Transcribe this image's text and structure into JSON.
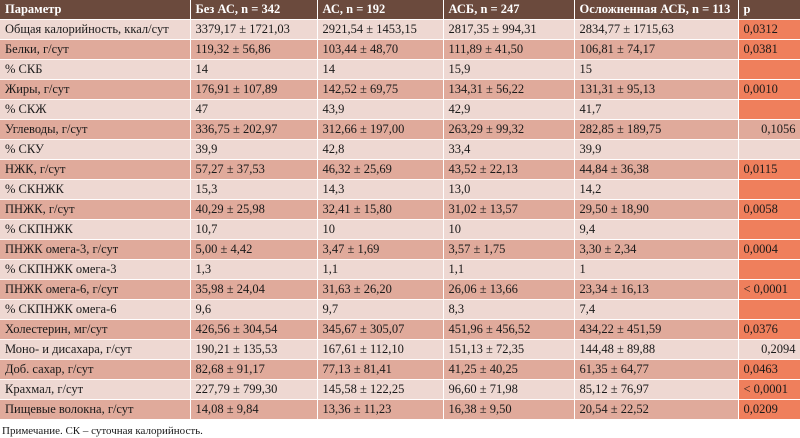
{
  "table": {
    "headers": [
      "Параметр",
      "Без АС, n = 342",
      "АС, n = 192",
      "АСБ, n = 247",
      "Осложненная АСБ, n = 113",
      "p"
    ],
    "rows": [
      {
        "label": "Общая калорийность, ккал/сут",
        "values": [
          "3379,17 ± 1721,03",
          "2921,54 ± 1453,15",
          "2817,35 ± 994,31",
          "2834,77 ± 1715,63"
        ],
        "p": "0,0312",
        "significant": true
      },
      {
        "label": "Белки, г/сут",
        "values": [
          "119,32 ± 56,86",
          "103,44 ± 48,70",
          "111,89 ± 41,50",
          "106,81 ± 74,17"
        ],
        "p": "0,0381",
        "significant": true
      },
      {
        "label": "% СКБ",
        "values": [
          "14",
          "14",
          "15,9",
          "15"
        ],
        "p": "",
        "significant": true
      },
      {
        "label": "Жиры, г/сут",
        "values": [
          "176,91 ± 107,89",
          "142,52 ± 69,75",
          "134,31 ± 56,22",
          "131,31 ± 95,13"
        ],
        "p": "0,0010",
        "significant": true
      },
      {
        "label": "% СКЖ",
        "values": [
          "47",
          "43,9",
          "42,9",
          "41,7"
        ],
        "p": "",
        "significant": true
      },
      {
        "label": "Углеводы, г/сут",
        "values": [
          "336,75 ± 202,97",
          "312,66 ± 197,00",
          "263,29 ± 99,32",
          "282,85 ± 189,75"
        ],
        "p": "0,1056",
        "significant": false
      },
      {
        "label": "% СКУ",
        "values": [
          "39,9",
          "42,8",
          "33,4",
          "39,9"
        ],
        "p": "",
        "significant": false
      },
      {
        "label": "НЖК, г/сут",
        "values": [
          "57,27 ± 37,53",
          "46,32 ± 25,69",
          "43,52 ± 22,13",
          "44,84 ± 36,38"
        ],
        "p": "0,0115",
        "significant": true
      },
      {
        "label": "% СКНЖК",
        "values": [
          "15,3",
          "14,3",
          "13,0",
          "14,2"
        ],
        "p": "",
        "significant": true
      },
      {
        "label": "ПНЖК, г/сут",
        "values": [
          "40,29 ± 25,98",
          "32,41 ± 15,80",
          "31,02 ± 13,57",
          "29,50 ± 18,90"
        ],
        "p": "0,0058",
        "significant": true
      },
      {
        "label": "% СКПНЖК",
        "values": [
          "10,7",
          "10",
          "10",
          "9,4"
        ],
        "p": "",
        "significant": true
      },
      {
        "label": "ПНЖК омега-3, г/сут",
        "values": [
          "5,00 ± 4,42",
          "3,47 ± 1,69",
          "3,57 ± 1,75",
          "3,30 ± 2,34"
        ],
        "p": "0,0004",
        "significant": true
      },
      {
        "label": "% СКПНЖК омега-3",
        "values": [
          "1,3",
          "1,1",
          "1,1",
          "1"
        ],
        "p": "",
        "significant": true
      },
      {
        "label": "ПНЖК омега-6, г/сут",
        "values": [
          "35,98 ± 24,04",
          "31,63 ± 26,20",
          "26,06 ± 13,66",
          "23,34 ± 16,13"
        ],
        "p": "< 0,0001",
        "significant": true
      },
      {
        "label": "% СКПНЖК омега-6",
        "values": [
          "9,6",
          "9,7",
          "8,3",
          "7,4"
        ],
        "p": "",
        "significant": true
      },
      {
        "label": "Холестерин, мг/сут",
        "values": [
          "426,56 ± 304,54",
          "345,67 ± 305,07",
          "451,96 ± 456,52",
          "434,22 ± 451,59"
        ],
        "p": "0,0376",
        "significant": true
      },
      {
        "label": "Моно- и дисахара, г/сут",
        "values": [
          "190,21 ± 135,53",
          "167,61 ± 112,10",
          "151,13 ± 72,35",
          "144,48 ± 89,88"
        ],
        "p": "0,2094",
        "significant": false
      },
      {
        "label": "Доб. сахар, г/сут",
        "values": [
          "82,68 ± 91,17",
          "77,13 ± 81,41",
          "41,25 ± 40,25",
          "61,35 ± 64,77"
        ],
        "p": "0,0463",
        "significant": true
      },
      {
        "label": "Крахмал, г/сут",
        "values": [
          "227,79 ± 799,30",
          "145,58 ± 122,25",
          "96,60 ± 71,98",
          "85,12 ± 76,97"
        ],
        "p": "< 0,0001",
        "significant": true
      },
      {
        "label": "Пищевые волокна, г/сут",
        "values": [
          "14,08 ± 9,84",
          "13,36 ± 11,23",
          "16,38 ± 9,50",
          "20,54 ± 22,52"
        ],
        "p": "0,0209",
        "significant": true
      }
    ]
  },
  "note": "Примечание. СК – суточная калорийность.",
  "colors": {
    "header_bg": "#6b4a3d",
    "row_light": "#eed8d2",
    "row_dark": "#e0aa9b",
    "significant_p": "#ef7f5c"
  }
}
